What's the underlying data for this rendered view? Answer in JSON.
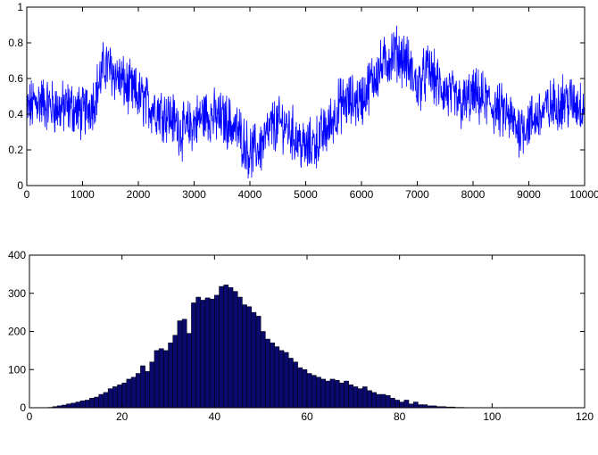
{
  "chart_data": [
    {
      "type": "line",
      "title": "",
      "xlabel": "",
      "ylabel": "",
      "xlim": [
        0,
        10000
      ],
      "ylim": [
        0,
        1
      ],
      "xticks": [
        0,
        1000,
        2000,
        3000,
        4000,
        5000,
        6000,
        7000,
        8000,
        9000,
        10000
      ],
      "yticks": [
        0,
        0.2,
        0.4,
        0.6,
        0.8,
        1
      ],
      "xtick_labels": [
        "0",
        "1000",
        "2000",
        "3000",
        "4000",
        "5000",
        "6000",
        "7000",
        "8000",
        "9000",
        "10000"
      ],
      "ytick_labels": [
        "0",
        "0.2",
        "0.4",
        "0.6",
        "0.8",
        "1"
      ],
      "grid": false,
      "color": "#0000ff",
      "series": [
        {
          "x": [
            0,
            200,
            400,
            600,
            800,
            1000,
            1200,
            1400,
            1600,
            1800,
            2000,
            2200,
            2400,
            2600,
            2800,
            3000,
            3200,
            3400,
            3600,
            3800,
            4000,
            4200,
            4400,
            4600,
            4800,
            5000,
            5200,
            5400,
            5600,
            5800,
            6000,
            6200,
            6400,
            6600,
            6800,
            7000,
            7200,
            7400,
            7600,
            7800,
            8000,
            8200,
            8400,
            8600,
            8800,
            9000,
            9200,
            9400,
            9600,
            9800,
            10000
          ],
          "values": [
            0.42,
            0.48,
            0.45,
            0.43,
            0.44,
            0.4,
            0.48,
            0.68,
            0.62,
            0.55,
            0.5,
            0.45,
            0.42,
            0.38,
            0.3,
            0.35,
            0.4,
            0.38,
            0.36,
            0.3,
            0.18,
            0.22,
            0.33,
            0.35,
            0.28,
            0.2,
            0.25,
            0.32,
            0.45,
            0.47,
            0.48,
            0.6,
            0.68,
            0.75,
            0.7,
            0.55,
            0.65,
            0.55,
            0.5,
            0.45,
            0.5,
            0.48,
            0.43,
            0.4,
            0.32,
            0.35,
            0.4,
            0.44,
            0.48,
            0.46,
            0.45
          ]
        }
      ]
    },
    {
      "type": "bar",
      "title": "",
      "xlabel": "",
      "ylabel": "",
      "xlim": [
        0,
        120
      ],
      "ylim": [
        0,
        400
      ],
      "xticks": [
        0,
        20,
        40,
        60,
        80,
        100,
        120
      ],
      "yticks": [
        0,
        100,
        200,
        300,
        400
      ],
      "xtick_labels": [
        "0",
        "20",
        "40",
        "60",
        "80",
        "100",
        "120"
      ],
      "ytick_labels": [
        "0",
        "100",
        "200",
        "300",
        "400"
      ],
      "grid": false,
      "color": "#0a0a6e",
      "categories": [
        0,
        1,
        2,
        3,
        4,
        5,
        6,
        7,
        8,
        9,
        10,
        11,
        12,
        13,
        14,
        15,
        16,
        17,
        18,
        19,
        20,
        21,
        22,
        23,
        24,
        25,
        26,
        27,
        28,
        29,
        30,
        31,
        32,
        33,
        34,
        35,
        36,
        37,
        38,
        39,
        40,
        41,
        42,
        43,
        44,
        45,
        46,
        47,
        48,
        49,
        50,
        51,
        52,
        53,
        54,
        55,
        56,
        57,
        58,
        59,
        60,
        61,
        62,
        63,
        64,
        65,
        66,
        67,
        68,
        69,
        70,
        71,
        72,
        73,
        74,
        75,
        76,
        77,
        78,
        79,
        80,
        81,
        82,
        83,
        84,
        85,
        86,
        87,
        88,
        89,
        90,
        91,
        92,
        93,
        94,
        95,
        96,
        97,
        98,
        99,
        100
      ],
      "values": [
        0,
        0,
        0,
        0,
        1,
        3,
        5,
        7,
        10,
        12,
        15,
        18,
        20,
        25,
        28,
        35,
        40,
        50,
        55,
        60,
        65,
        75,
        80,
        90,
        110,
        95,
        120,
        150,
        155,
        150,
        170,
        190,
        228,
        232,
        195,
        275,
        290,
        282,
        288,
        285,
        295,
        318,
        322,
        315,
        305,
        290,
        270,
        265,
        250,
        240,
        200,
        180,
        170,
        160,
        150,
        145,
        130,
        120,
        105,
        100,
        90,
        85,
        80,
        75,
        70,
        75,
        72,
        65,
        70,
        60,
        55,
        50,
        55,
        45,
        40,
        35,
        35,
        32,
        25,
        20,
        15,
        20,
        10,
        15,
        8,
        8,
        5,
        5,
        3,
        3,
        2,
        2,
        1,
        1,
        0,
        0,
        0,
        0,
        0,
        0,
        0
      ]
    }
  ]
}
